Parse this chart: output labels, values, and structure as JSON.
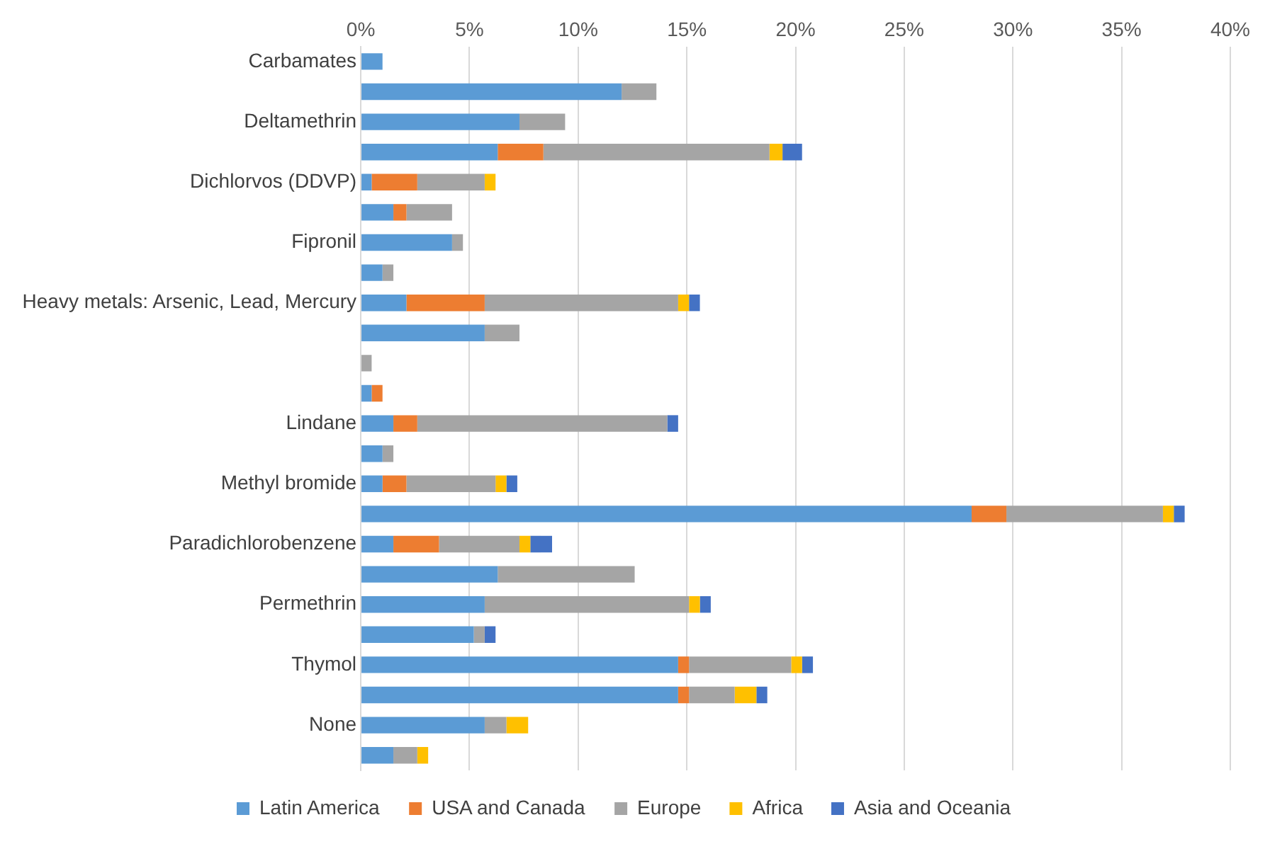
{
  "chart_data": {
    "type": "bar",
    "orientation": "horizontal",
    "stacked": true,
    "categories": [
      "Carbamates",
      null,
      "Deltamethrin",
      null,
      "Dichlorvos (DDVP)",
      null,
      "Fipronil",
      null,
      "Heavy metals: Arsenic, Lead, Mercury",
      null,
      null,
      null,
      "Lindane",
      null,
      "Methyl bromide",
      null,
      "Paradichlorobenzene",
      null,
      "Permethrin",
      null,
      "Thymol",
      null,
      "None",
      null
    ],
    "series": [
      {
        "name": "Latin America",
        "color": "#5b9bd5",
        "values": [
          1.0,
          12.0,
          7.3,
          6.3,
          0.5,
          1.5,
          4.2,
          1.0,
          2.1,
          5.7,
          null,
          0.5,
          1.5,
          1.0,
          1.0,
          28.1,
          1.5,
          6.3,
          5.7,
          5.2,
          14.6,
          14.6,
          5.7,
          1.5
        ]
      },
      {
        "name": "USA and Canada",
        "color": "#ed7d31",
        "values": [
          null,
          null,
          null,
          2.1,
          2.1,
          0.6,
          null,
          null,
          3.6,
          null,
          null,
          0.5,
          1.1,
          null,
          1.1,
          1.6,
          2.1,
          null,
          null,
          null,
          0.5,
          0.5,
          null,
          null
        ]
      },
      {
        "name": "Europe",
        "color": "#a5a5a5",
        "values": [
          null,
          1.6,
          2.1,
          10.4,
          3.1,
          2.1,
          0.5,
          0.5,
          8.9,
          1.6,
          0.5,
          null,
          11.5,
          0.5,
          4.1,
          7.2,
          3.7,
          6.3,
          9.4,
          0.5,
          4.7,
          2.1,
          1.0,
          1.1
        ]
      },
      {
        "name": "Africa",
        "color": "#ffc000",
        "values": [
          null,
          null,
          null,
          0.6,
          0.5,
          null,
          null,
          null,
          0.5,
          null,
          null,
          null,
          null,
          null,
          0.5,
          0.5,
          0.5,
          null,
          0.5,
          null,
          0.5,
          1.0,
          1.0,
          0.5
        ]
      },
      {
        "name": "Asia and Oceania",
        "color": "#4472c4",
        "values": [
          null,
          null,
          null,
          0.9,
          null,
          null,
          null,
          null,
          0.5,
          null,
          null,
          null,
          0.5,
          null,
          0.5,
          0.5,
          1.0,
          null,
          0.5,
          0.5,
          0.5,
          0.5,
          null,
          null
        ]
      }
    ],
    "xlim": [
      0,
      40
    ],
    "xticks": [
      {
        "value": 0,
        "label": "0%"
      },
      {
        "value": 5,
        "label": "5%"
      },
      {
        "value": 10,
        "label": "10%"
      },
      {
        "value": 15,
        "label": "15%"
      },
      {
        "value": 20,
        "label": "20%"
      },
      {
        "value": 25,
        "label": "25%"
      },
      {
        "value": 30,
        "label": "30%"
      },
      {
        "value": 35,
        "label": "35%"
      },
      {
        "value": 40,
        "label": "40%"
      }
    ],
    "grid": "x",
    "legend": "bottom"
  }
}
